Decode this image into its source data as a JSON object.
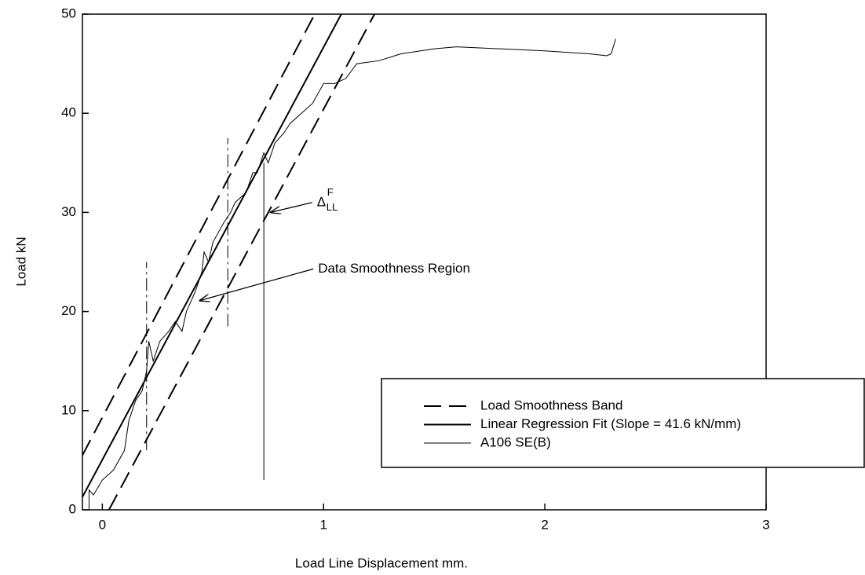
{
  "chart_data": {
    "type": "line",
    "xlabel": "Load Line Displacement  mm.",
    "ylabel": "Load  kN",
    "xlim": [
      -0.09,
      3
    ],
    "xticks": [
      0,
      1,
      2,
      3
    ],
    "ylim": [
      0,
      50
    ],
    "yticks": [
      0,
      10,
      20,
      30,
      40,
      50
    ],
    "series": [
      {
        "name": "Load Smoothness Band",
        "color": "#000000",
        "style": "dashed",
        "width": 2,
        "x": [
          -0.09,
          0.96
        ],
        "values": [
          5.5,
          50
        ]
      },
      {
        "name": "Load Smoothness Band",
        "color": "#000000",
        "style": "dashed",
        "width": 2,
        "legend": false,
        "x": [
          0.03,
          1.23
        ],
        "values": [
          0,
          50
        ]
      },
      {
        "name": "Linear Regression Fit (Slope = 41.6 kN/mm)",
        "color": "#000000",
        "style": "solid",
        "width": 2,
        "x": [
          -0.09,
          1.08
        ],
        "values": [
          1.3,
          50
        ]
      },
      {
        "name": "A106 SE(B)",
        "color": "#000000",
        "style": "solid",
        "width": 1,
        "x": [
          -0.06,
          -0.06,
          -0.04,
          0,
          0.05,
          0.1,
          0.12,
          0.15,
          0.18,
          0.2,
          0.21,
          0.23,
          0.26,
          0.3,
          0.33,
          0.36,
          0.38,
          0.4,
          0.42,
          0.45,
          0.46,
          0.48,
          0.5,
          0.55,
          0.58,
          0.6,
          0.65,
          0.68,
          0.7,
          0.73,
          0.75,
          0.78,
          0.82,
          0.85,
          0.9,
          0.95,
          1.0,
          1.05,
          1.1,
          1.15,
          1.25,
          1.35,
          1.5,
          1.6,
          1.8,
          2.0,
          2.2,
          2.28,
          2.3,
          2.32
        ],
        "values": [
          0,
          2,
          1.5,
          3,
          4,
          6,
          9,
          11,
          12,
          14,
          17,
          15,
          17,
          18,
          19,
          18,
          20,
          21,
          22,
          24,
          26,
          25,
          27,
          29,
          30,
          31,
          32,
          34,
          34,
          36,
          35,
          37,
          38,
          39,
          40,
          41,
          43,
          43,
          43.5,
          45,
          45.3,
          46,
          46.5,
          46.7,
          46.5,
          46.3,
          46,
          45.8,
          46,
          47.5
        ]
      }
    ],
    "reference_lines": [
      {
        "style": "dashdot",
        "x": [
          0.2,
          0.2
        ],
        "values": [
          6,
          25
        ]
      },
      {
        "style": "dashdot",
        "x": [
          0.567,
          0.567
        ],
        "values": [
          18.5,
          37.5
        ]
      },
      {
        "style": "solid",
        "x": [
          0.73,
          0.73
        ],
        "values": [
          3,
          35
        ]
      }
    ],
    "annotations": [
      {
        "text": "Data Smoothness Region",
        "x": 0.975,
        "y": 24.3,
        "arrow_to": [
          0.44,
          21.1
        ]
      },
      {
        "text": "Δ",
        "sup": "F",
        "sub": "LL",
        "x": 0.97,
        "y": 31,
        "arrow_to": [
          0.76,
          30
        ]
      }
    ],
    "legend": "lower right"
  }
}
